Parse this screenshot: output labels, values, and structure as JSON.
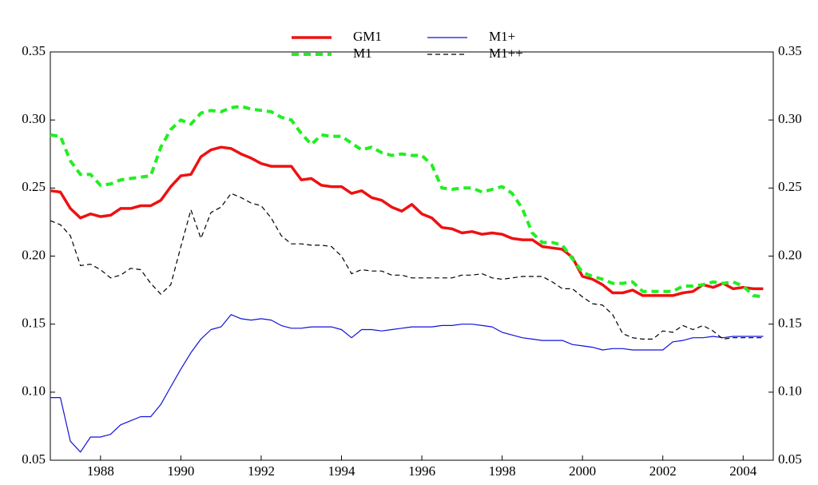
{
  "chart_data": {
    "type": "line",
    "x": [
      1986.75,
      1987,
      1987.25,
      1987.5,
      1987.75,
      1988,
      1988.25,
      1988.5,
      1988.75,
      1989,
      1989.25,
      1989.5,
      1989.75,
      1990,
      1990.25,
      1990.5,
      1990.75,
      1991,
      1991.25,
      1991.5,
      1991.75,
      1992,
      1992.25,
      1992.5,
      1992.75,
      1993,
      1993.25,
      1993.5,
      1993.75,
      1994,
      1994.25,
      1994.5,
      1994.75,
      1995,
      1995.25,
      1995.5,
      1995.75,
      1996,
      1996.25,
      1996.5,
      1996.75,
      1997,
      1997.25,
      1997.5,
      1997.75,
      1998,
      1998.25,
      1998.5,
      1998.75,
      1999,
      1999.25,
      1999.5,
      1999.75,
      2000,
      2000.25,
      2000.5,
      2000.75,
      2001,
      2001.25,
      2001.5,
      2001.75,
      2002,
      2002.25,
      2002.5,
      2002.75,
      2003,
      2003.25,
      2003.5,
      2003.75,
      2004,
      2004.25,
      2004.5
    ],
    "series": [
      {
        "name": "GM1",
        "color": "#ee1111",
        "style": "solid",
        "width": 3.5,
        "values": [
          0.248,
          0.247,
          0.235,
          0.228,
          0.231,
          0.229,
          0.23,
          0.235,
          0.235,
          0.237,
          0.237,
          0.241,
          0.251,
          0.259,
          0.26,
          0.273,
          0.278,
          0.28,
          0.279,
          0.275,
          0.272,
          0.268,
          0.266,
          0.266,
          0.266,
          0.256,
          0.257,
          0.252,
          0.251,
          0.251,
          0.246,
          0.248,
          0.243,
          0.241,
          0.236,
          0.233,
          0.238,
          0.231,
          0.228,
          0.221,
          0.22,
          0.217,
          0.218,
          0.216,
          0.217,
          0.216,
          0.213,
          0.212,
          0.212,
          0.207,
          0.206,
          0.205,
          0.199,
          0.185,
          0.183,
          0.179,
          0.173,
          0.173,
          0.175,
          0.171,
          0.171,
          0.171,
          0.171,
          0.173,
          0.174,
          0.179,
          0.177,
          0.18,
          0.176,
          0.177,
          0.176,
          0.176
        ]
      },
      {
        "name": "M1",
        "color": "#22ee22",
        "style": "dashed",
        "width": 4,
        "values": [
          0.289,
          0.288,
          0.27,
          0.26,
          0.26,
          0.252,
          0.253,
          0.256,
          0.257,
          0.258,
          0.259,
          0.28,
          0.293,
          0.3,
          0.297,
          0.305,
          0.307,
          0.306,
          0.309,
          0.31,
          0.308,
          0.307,
          0.306,
          0.302,
          0.3,
          0.29,
          0.282,
          0.289,
          0.288,
          0.288,
          0.283,
          0.278,
          0.28,
          0.276,
          0.274,
          0.275,
          0.274,
          0.274,
          0.267,
          0.25,
          0.249,
          0.25,
          0.25,
          0.247,
          0.249,
          0.251,
          0.246,
          0.235,
          0.217,
          0.21,
          0.21,
          0.208,
          0.198,
          0.188,
          0.185,
          0.183,
          0.18,
          0.18,
          0.181,
          0.174,
          0.174,
          0.174,
          0.174,
          0.178,
          0.178,
          0.179,
          0.181,
          0.18,
          0.181,
          0.178,
          0.171,
          0.17
        ]
      },
      {
        "name": "M1+",
        "color": "#1111dd",
        "style": "solid",
        "width": 1.2,
        "values": [
          0.096,
          0.096,
          0.064,
          0.056,
          0.067,
          0.067,
          0.069,
          0.076,
          0.079,
          0.082,
          0.082,
          0.091,
          0.104,
          0.117,
          0.129,
          0.139,
          0.146,
          0.148,
          0.157,
          0.154,
          0.153,
          0.154,
          0.153,
          0.149,
          0.147,
          0.147,
          0.148,
          0.148,
          0.148,
          0.146,
          0.14,
          0.146,
          0.146,
          0.145,
          0.146,
          0.147,
          0.148,
          0.148,
          0.148,
          0.149,
          0.149,
          0.15,
          0.15,
          0.149,
          0.148,
          0.144,
          0.142,
          0.14,
          0.139,
          0.138,
          0.138,
          0.138,
          0.135,
          0.134,
          0.133,
          0.131,
          0.132,
          0.132,
          0.131,
          0.131,
          0.131,
          0.131,
          0.137,
          0.138,
          0.14,
          0.14,
          0.141,
          0.14,
          0.141,
          0.141,
          0.141,
          0.141
        ]
      },
      {
        "name": "M1++",
        "color": "#000000",
        "style": "dashed",
        "width": 1.2,
        "values": [
          0.226,
          0.223,
          0.215,
          0.193,
          0.194,
          0.19,
          0.184,
          0.186,
          0.191,
          0.19,
          0.18,
          0.172,
          0.179,
          0.207,
          0.234,
          0.213,
          0.232,
          0.236,
          0.246,
          0.243,
          0.239,
          0.237,
          0.228,
          0.215,
          0.209,
          0.209,
          0.208,
          0.208,
          0.207,
          0.2,
          0.187,
          0.19,
          0.189,
          0.189,
          0.186,
          0.186,
          0.184,
          0.184,
          0.184,
          0.184,
          0.184,
          0.186,
          0.186,
          0.187,
          0.184,
          0.183,
          0.184,
          0.185,
          0.185,
          0.185,
          0.181,
          0.176,
          0.176,
          0.17,
          0.165,
          0.164,
          0.157,
          0.143,
          0.14,
          0.139,
          0.139,
          0.145,
          0.144,
          0.149,
          0.146,
          0.149,
          0.145,
          0.139,
          0.14,
          0.14,
          0.14,
          0.14
        ]
      }
    ],
    "xlim": [
      1986.75,
      2004.75
    ],
    "xticks": [
      1988,
      1990,
      1992,
      1994,
      1996,
      1998,
      2000,
      2002,
      2004
    ],
    "ylim": [
      0.05,
      0.35
    ],
    "yticks": [
      0.05,
      {
        "value": 0.1,
        "label": "0.10"
      },
      0.15,
      {
        "value": 0.2,
        "label": "0.20"
      },
      0.25,
      {
        "value": 0.3,
        "label": "0.30"
      },
      0.35
    ],
    "mirror_y_axis": true,
    "legend": "top"
  }
}
